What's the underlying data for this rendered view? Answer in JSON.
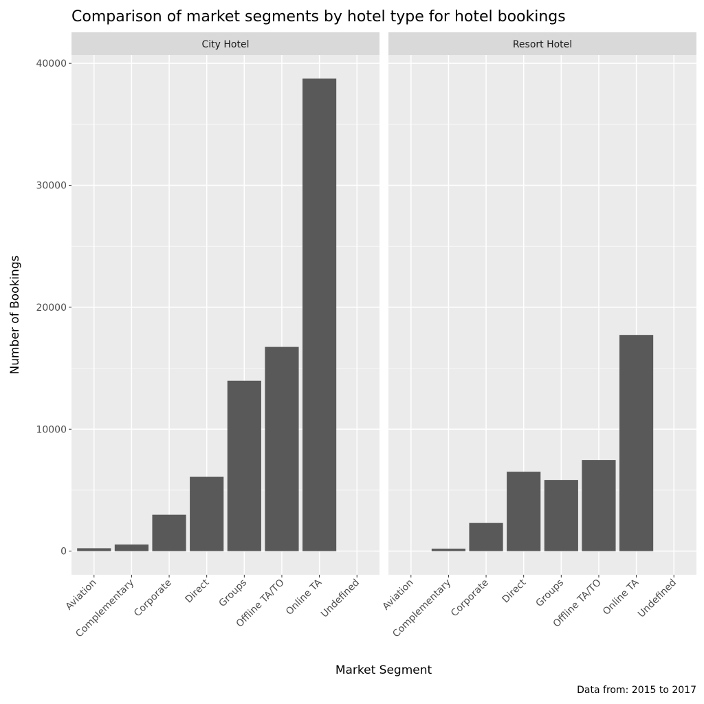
{
  "chart_data": {
    "type": "bar",
    "title": "Comparison of market segments by hotel type for hotel bookings",
    "xlabel": "Market Segment",
    "ylabel": "Number of Bookings",
    "caption": "Data from: 2015 to 2017",
    "categories": [
      "Aviation",
      "Complementary",
      "Corporate",
      "Direct",
      "Groups",
      "Offline TA/TO",
      "Online TA",
      "Undefined"
    ],
    "yticks": [
      0,
      10000,
      20000,
      30000,
      40000
    ],
    "grid": true,
    "bar_color": "#595959",
    "panel_bg": "#EBEBEB",
    "strip_bg": "#D9D9D9",
    "facets": [
      {
        "name": "City Hotel",
        "values": [
          237,
          542,
          2986,
          6093,
          13975,
          16747,
          38748,
          2
        ]
      },
      {
        "name": "Resort Hotel",
        "values": [
          0,
          201,
          2309,
          6513,
          5836,
          7472,
          17729,
          0
        ]
      }
    ]
  }
}
